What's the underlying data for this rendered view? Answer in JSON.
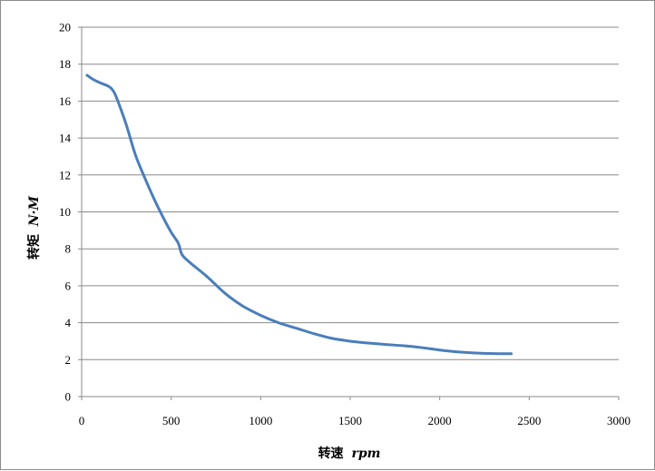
{
  "chart_data": {
    "type": "line",
    "title": "",
    "xlabel": {
      "main": "转速",
      "unit": "rpm"
    },
    "ylabel": {
      "main": "转矩",
      "unit": "N·M"
    },
    "xlim": [
      0,
      3000
    ],
    "ylim": [
      0,
      20
    ],
    "x_ticks": [
      0,
      500,
      1000,
      1500,
      2000,
      2500,
      3000
    ],
    "y_ticks": [
      0,
      2,
      4,
      6,
      8,
      10,
      12,
      14,
      16,
      18,
      20
    ],
    "grid": "horizontal",
    "legend": "none",
    "line_color": "#4a7ebb",
    "series": [
      {
        "x": [
          30,
          60,
          100,
          150,
          180,
          210,
          250,
          300,
          350,
          400,
          450,
          500,
          540,
          560,
          600,
          700,
          800,
          900,
          1000,
          1100,
          1200,
          1300,
          1400,
          1500,
          1600,
          1700,
          1800,
          1900,
          2000,
          2100,
          2200,
          2300,
          2400
        ],
        "y": [
          17.4,
          17.2,
          17.0,
          16.8,
          16.5,
          15.8,
          14.7,
          13.1,
          11.9,
          10.8,
          9.8,
          8.9,
          8.3,
          7.7,
          7.3,
          6.5,
          5.6,
          4.9,
          4.4,
          4.0,
          3.7,
          3.4,
          3.15,
          3.0,
          2.9,
          2.82,
          2.75,
          2.65,
          2.52,
          2.42,
          2.36,
          2.33,
          2.32
        ]
      }
    ]
  }
}
